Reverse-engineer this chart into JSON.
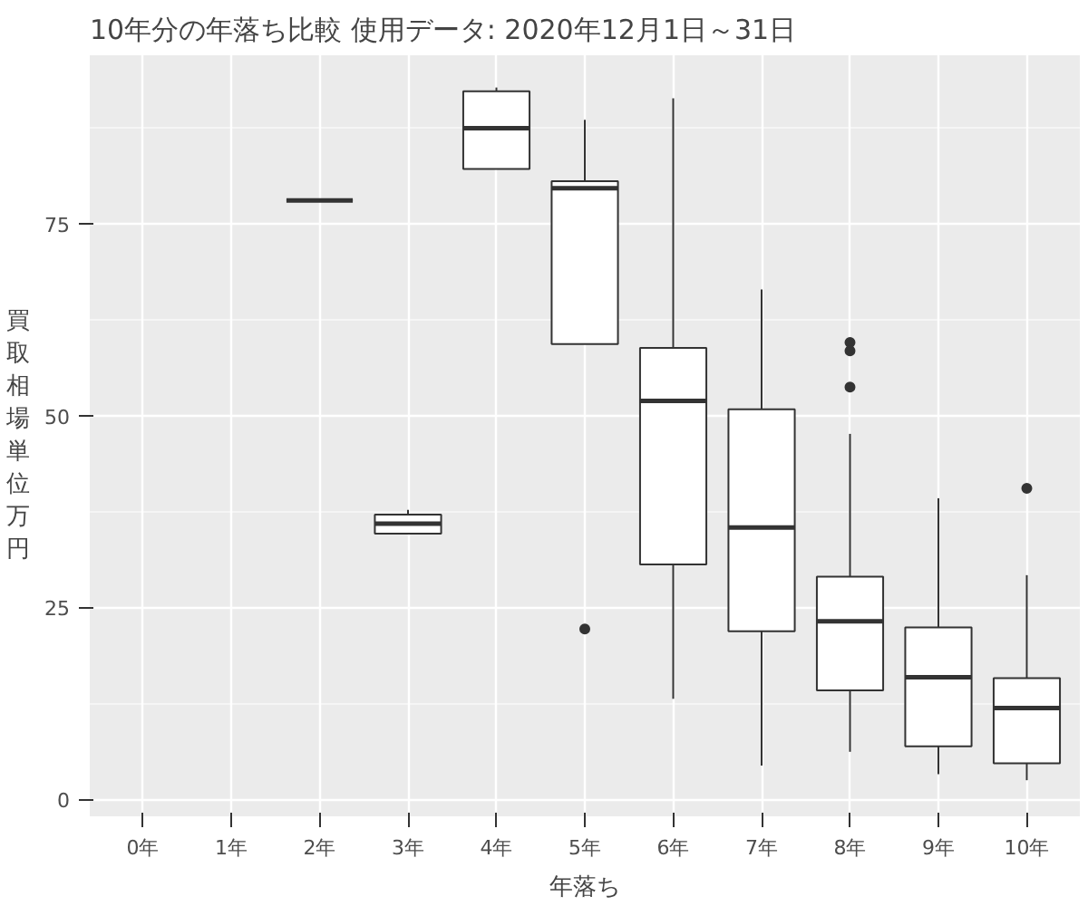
{
  "chart_data": {
    "type": "box",
    "title": "10年分の年落ち比較 使用データ: 2020年12月1日～31日",
    "xlabel": "年落ち",
    "ylabel": "買取相場単位万円",
    "categories": [
      "0年",
      "1年",
      "2年",
      "3年",
      "4年",
      "5年",
      "6年",
      "7年",
      "8年",
      "9年",
      "10年"
    ],
    "boxes": [
      null,
      null,
      {
        "low": 78,
        "q1": 78,
        "median": 78,
        "q3": 78,
        "high": 78
      },
      {
        "low": 34.6,
        "q1": 34.6,
        "median": 35.9,
        "q3": 37.1,
        "high": 37.7
      },
      {
        "low": 82.1,
        "q1": 82.1,
        "median": 87.4,
        "q3": 92.2,
        "high": 92.7
      },
      {
        "low": 59.3,
        "q1": 59.3,
        "median": 79.6,
        "q3": 80.5,
        "high": 88.5,
        "outliers": [
          22.2
        ]
      },
      {
        "low": 13.1,
        "q1": 30.6,
        "median": 51.9,
        "q3": 58.8,
        "high": 91.3
      },
      {
        "low": 4.4,
        "q1": 21.9,
        "median": 35.4,
        "q3": 50.8,
        "high": 66.4
      },
      {
        "low": 6.2,
        "q1": 14.2,
        "median": 23.2,
        "q3": 29.0,
        "high": 47.6,
        "outliers": [
          59.5,
          58.4,
          53.7
        ]
      },
      {
        "low": 3.3,
        "q1": 6.9,
        "median": 15.9,
        "q3": 22.4,
        "high": 39.2
      },
      {
        "low": 2.5,
        "q1": 4.7,
        "median": 11.9,
        "q3": 15.8,
        "high": 29.2,
        "outliers": [
          40.5
        ]
      }
    ],
    "ylim": [
      -2.2,
      96.9
    ],
    "yticks": [
      0,
      25,
      50,
      75
    ],
    "grid": true
  }
}
